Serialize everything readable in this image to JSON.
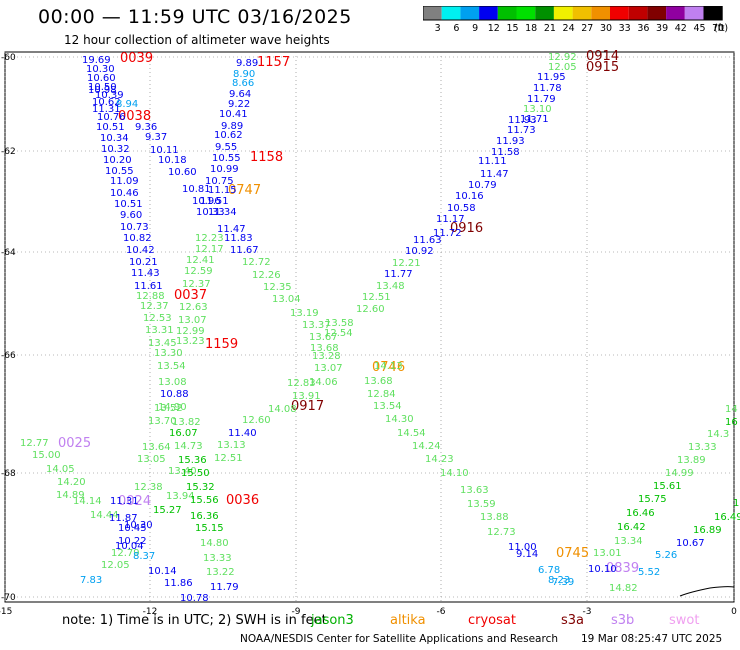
{
  "header": {
    "title": "00:00 — 11:59 UTC 03/16/2025",
    "subtitle": "12 hour collection of altimeter wave heights"
  },
  "colorbar": {
    "unit": "(ft)",
    "ticks": [
      "3",
      "6",
      "9",
      "12",
      "15",
      "18",
      "21",
      "24",
      "27",
      "30",
      "33",
      "36",
      "39",
      "42",
      "45",
      "70"
    ],
    "colors": [
      "#808080",
      "#00f0f0",
      "#00a0f0",
      "#0000f0",
      "#00c000",
      "#00e000",
      "#009000",
      "#f0f000",
      "#f0c000",
      "#f09000",
      "#f00000",
      "#c00000",
      "#800000",
      "#9000a0",
      "#c080f0",
      "#000000"
    ]
  },
  "map": {
    "y_ticks": [
      "-60",
      "-62",
      "-64",
      "-66",
      "-68",
      "-70"
    ],
    "x_ticks": [
      "-15",
      "-12",
      "-9",
      "-6",
      "-3",
      "0"
    ],
    "times": [
      {
        "text": "0039",
        "color": "#f00000"
      },
      {
        "text": "1157",
        "color": "#f00000"
      },
      {
        "text": "0914",
        "color": "#800000"
      },
      {
        "text": "0915",
        "color": "#800000"
      },
      {
        "text": "0038",
        "color": "#f00000"
      },
      {
        "text": "1158",
        "color": "#f00000"
      },
      {
        "text": "0747",
        "color": "#f09000"
      },
      {
        "text": "0916",
        "color": "#800000"
      },
      {
        "text": "0037",
        "color": "#f00000"
      },
      {
        "text": "1159",
        "color": "#f00000"
      },
      {
        "text": "0746",
        "color": "#f09000"
      },
      {
        "text": "0917",
        "color": "#800000"
      },
      {
        "text": "0025",
        "color": "#c080f0"
      },
      {
        "text": "0024",
        "color": "#c080f0"
      },
      {
        "text": "0036",
        "color": "#f00000"
      },
      {
        "text": "0745",
        "color": "#f09000"
      },
      {
        "text": "0839",
        "color": "#c080f0"
      }
    ],
    "values": [
      {
        "text": "19.69",
        "color": "#0000f0"
      },
      {
        "text": "10.30",
        "color": "#0000f0"
      },
      {
        "text": "10.60",
        "color": "#0000f0"
      },
      {
        "text": "10.50",
        "color": "#0000f0"
      },
      {
        "text": "10.39",
        "color": "#0000f0"
      },
      {
        "text": "10.98",
        "color": "#0000f0"
      },
      {
        "text": "10.62",
        "color": "#0000f0"
      },
      {
        "text": "8.94",
        "color": "#00a0f0"
      },
      {
        "text": "11.31",
        "color": "#0000f0"
      },
      {
        "text": "10.76",
        "color": "#0000f0"
      },
      {
        "text": "9.36",
        "color": "#0000f0"
      },
      {
        "text": "10.51",
        "color": "#0000f0"
      },
      {
        "text": "9.37",
        "color": "#0000f0"
      },
      {
        "text": "10.34",
        "color": "#0000f0"
      },
      {
        "text": "10.32",
        "color": "#0000f0"
      },
      {
        "text": "10.11",
        "color": "#0000f0"
      },
      {
        "text": "10.20",
        "color": "#0000f0"
      },
      {
        "text": "10.18",
        "color": "#0000f0"
      },
      {
        "text": "10.55",
        "color": "#0000f0"
      },
      {
        "text": "10.60",
        "color": "#0000f0"
      },
      {
        "text": "11.09",
        "color": "#0000f0"
      },
      {
        "text": "10.46",
        "color": "#0000f0"
      },
      {
        "text": "10.81",
        "color": "#0000f0"
      },
      {
        "text": "10.51",
        "color": "#0000f0"
      },
      {
        "text": "10.96",
        "color": "#0000f0"
      },
      {
        "text": "9.60",
        "color": "#0000f0"
      },
      {
        "text": "10.33",
        "color": "#0000f0"
      },
      {
        "text": "10.73",
        "color": "#0000f0"
      },
      {
        "text": "10.82",
        "color": "#0000f0"
      },
      {
        "text": "10.42",
        "color": "#0000f0"
      },
      {
        "text": "10.21",
        "color": "#0000f0"
      },
      {
        "text": "11.43",
        "color": "#0000f0"
      },
      {
        "text": "11.61",
        "color": "#0000f0"
      },
      {
        "text": "12.88",
        "color": "#60e060"
      },
      {
        "text": "12.37",
        "color": "#60e060"
      },
      {
        "text": "12.53",
        "color": "#60e060"
      },
      {
        "text": "13.31",
        "color": "#60e060"
      },
      {
        "text": "13.45",
        "color": "#60e060"
      },
      {
        "text": "13.30",
        "color": "#60e060"
      },
      {
        "text": "13.54",
        "color": "#60e060"
      },
      {
        "text": "13.08",
        "color": "#60e060"
      },
      {
        "text": "10.88",
        "color": "#0000f0"
      },
      {
        "text": "13.52",
        "color": "#60e060"
      },
      {
        "text": "14.90",
        "color": "#60e060"
      },
      {
        "text": "13.82",
        "color": "#60e060"
      },
      {
        "text": "13.70",
        "color": "#60e060"
      },
      {
        "text": "16.07",
        "color": "#00c000"
      },
      {
        "text": "13.64",
        "color": "#60e060"
      },
      {
        "text": "14.73",
        "color": "#60e060"
      },
      {
        "text": "13.05",
        "color": "#60e060"
      },
      {
        "text": "15.36",
        "color": "#00c000"
      },
      {
        "text": "13.40",
        "color": "#60e060"
      },
      {
        "text": "15.50",
        "color": "#00c000"
      },
      {
        "text": "12.38",
        "color": "#60e060"
      },
      {
        "text": "15.32",
        "color": "#00c000"
      },
      {
        "text": "13.94",
        "color": "#60e060"
      },
      {
        "text": "15.56",
        "color": "#00c000"
      },
      {
        "text": "15.27",
        "color": "#00c000"
      },
      {
        "text": "16.36",
        "color": "#00c000"
      },
      {
        "text": "15.15",
        "color": "#00c000"
      },
      {
        "text": "14.80",
        "color": "#60e060"
      },
      {
        "text": "13.33",
        "color": "#60e060"
      },
      {
        "text": "13.22",
        "color": "#60e060"
      },
      {
        "text": "11.86",
        "color": "#0000f0"
      },
      {
        "text": "10.78",
        "color": "#0000f0"
      },
      {
        "text": "11.79",
        "color": "#0000f0"
      },
      {
        "text": "9.89",
        "color": "#0000f0"
      },
      {
        "text": "8.90",
        "color": "#00a0f0"
      },
      {
        "text": "8.66",
        "color": "#00a0f0"
      },
      {
        "text": "9.64",
        "color": "#0000f0"
      },
      {
        "text": "9.22",
        "color": "#0000f0"
      },
      {
        "text": "10.41",
        "color": "#0000f0"
      },
      {
        "text": "9.89",
        "color": "#0000f0"
      },
      {
        "text": "10.62",
        "color": "#0000f0"
      },
      {
        "text": "9.55",
        "color": "#0000f0"
      },
      {
        "text": "10.55",
        "color": "#0000f0"
      },
      {
        "text": "10.99",
        "color": "#0000f0"
      },
      {
        "text": "10.75",
        "color": "#0000f0"
      },
      {
        "text": "11.15",
        "color": "#0000f0"
      },
      {
        "text": "11.51",
        "color": "#0000f0"
      },
      {
        "text": "11.34",
        "color": "#0000f0"
      },
      {
        "text": "11.47",
        "color": "#0000f0"
      },
      {
        "text": "11.83",
        "color": "#0000f0"
      },
      {
        "text": "12.23",
        "color": "#60e060"
      },
      {
        "text": "12.17",
        "color": "#60e060"
      },
      {
        "text": "11.67",
        "color": "#0000f0"
      },
      {
        "text": "12.41",
        "color": "#60e060"
      },
      {
        "text": "12.72",
        "color": "#60e060"
      },
      {
        "text": "12.59",
        "color": "#60e060"
      },
      {
        "text": "12.26",
        "color": "#60e060"
      },
      {
        "text": "12.37",
        "color": "#60e060"
      },
      {
        "text": "12.35",
        "color": "#60e060"
      },
      {
        "text": "12.63",
        "color": "#60e060"
      },
      {
        "text": "13.04",
        "color": "#60e060"
      },
      {
        "text": "13.07",
        "color": "#60e060"
      },
      {
        "text": "13.19",
        "color": "#60e060"
      },
      {
        "text": "12.99",
        "color": "#60e060"
      },
      {
        "text": "13.37",
        "color": "#60e060"
      },
      {
        "text": "13.23",
        "color": "#60e060"
      },
      {
        "text": "13.67",
        "color": "#60e060"
      },
      {
        "text": "13.68",
        "color": "#60e060"
      },
      {
        "text": "13.28",
        "color": "#60e060"
      },
      {
        "text": "13.07",
        "color": "#60e060"
      },
      {
        "text": "14.06",
        "color": "#60e060"
      },
      {
        "text": "12.83",
        "color": "#60e060"
      },
      {
        "text": "13.91",
        "color": "#60e060"
      },
      {
        "text": "14.08",
        "color": "#60e060"
      },
      {
        "text": "12.60",
        "color": "#60e060"
      },
      {
        "text": "11.40",
        "color": "#0000f0"
      },
      {
        "text": "13.13",
        "color": "#60e060"
      },
      {
        "text": "12.51",
        "color": "#60e060"
      },
      {
        "text": "12.92",
        "color": "#60e060"
      },
      {
        "text": "12.05",
        "color": "#60e060"
      },
      {
        "text": "11.95",
        "color": "#0000f0"
      },
      {
        "text": "11.78",
        "color": "#0000f0"
      },
      {
        "text": "11.79",
        "color": "#0000f0"
      },
      {
        "text": "13.10",
        "color": "#60e060"
      },
      {
        "text": "11.93",
        "color": "#0000f0"
      },
      {
        "text": "11.71",
        "color": "#0000f0"
      },
      {
        "text": "11.73",
        "color": "#0000f0"
      },
      {
        "text": "11.93",
        "color": "#0000f0"
      },
      {
        "text": "11.58",
        "color": "#0000f0"
      },
      {
        "text": "11.11",
        "color": "#0000f0"
      },
      {
        "text": "11.47",
        "color": "#0000f0"
      },
      {
        "text": "10.79",
        "color": "#0000f0"
      },
      {
        "text": "10.16",
        "color": "#0000f0"
      },
      {
        "text": "10.58",
        "color": "#0000f0"
      },
      {
        "text": "11.17",
        "color": "#0000f0"
      },
      {
        "text": "11.72",
        "color": "#0000f0"
      },
      {
        "text": "11.63",
        "color": "#0000f0"
      },
      {
        "text": "10.92",
        "color": "#0000f0"
      },
      {
        "text": "12.21",
        "color": "#60e060"
      },
      {
        "text": "11.77",
        "color": "#0000f0"
      },
      {
        "text": "13.48",
        "color": "#60e060"
      },
      {
        "text": "12.51",
        "color": "#60e060"
      },
      {
        "text": "12.60",
        "color": "#60e060"
      },
      {
        "text": "12.54",
        "color": "#60e060"
      },
      {
        "text": "13.58",
        "color": "#60e060"
      },
      {
        "text": "14.13",
        "color": "#60e060"
      },
      {
        "text": "13.68",
        "color": "#60e060"
      },
      {
        "text": "12.84",
        "color": "#60e060"
      },
      {
        "text": "13.54",
        "color": "#60e060"
      },
      {
        "text": "14.30",
        "color": "#60e060"
      },
      {
        "text": "14.54",
        "color": "#60e060"
      },
      {
        "text": "14.24",
        "color": "#60e060"
      },
      {
        "text": "14.23",
        "color": "#60e060"
      },
      {
        "text": "14.10",
        "color": "#60e060"
      },
      {
        "text": "13.63",
        "color": "#60e060"
      },
      {
        "text": "13.59",
        "color": "#60e060"
      },
      {
        "text": "13.88",
        "color": "#60e060"
      },
      {
        "text": "12.73",
        "color": "#60e060"
      },
      {
        "text": "11.00",
        "color": "#0000f0"
      },
      {
        "text": "9.14",
        "color": "#0000f0"
      },
      {
        "text": "6.78",
        "color": "#00a0f0"
      },
      {
        "text": "7.39",
        "color": "#00a0f0"
      },
      {
        "text": "8.23",
        "color": "#00a0f0"
      },
      {
        "text": "10.10",
        "color": "#0000f0"
      },
      {
        "text": "13.01",
        "color": "#60e060"
      },
      {
        "text": "13.34",
        "color": "#60e060"
      },
      {
        "text": "16.42",
        "color": "#00c000"
      },
      {
        "text": "16.46",
        "color": "#00c000"
      },
      {
        "text": "15.75",
        "color": "#00c000"
      },
      {
        "text": "15.61",
        "color": "#00c000"
      },
      {
        "text": "14.99",
        "color": "#60e060"
      },
      {
        "text": "13.89",
        "color": "#60e060"
      },
      {
        "text": "13.33",
        "color": "#60e060"
      },
      {
        "text": "14.3",
        "color": "#60e060"
      },
      {
        "text": "14",
        "color": "#60e060"
      },
      {
        "text": "16",
        "color": "#00c000"
      },
      {
        "text": "17.39",
        "color": "#00c000"
      },
      {
        "text": "16.49",
        "color": "#00c000"
      },
      {
        "text": "16.89",
        "color": "#00c000"
      },
      {
        "text": "10.67",
        "color": "#0000f0"
      },
      {
        "text": "5.26",
        "color": "#00a0f0"
      },
      {
        "text": "5.52",
        "color": "#00a0f0"
      },
      {
        "text": "14.82",
        "color": "#60e060"
      },
      {
        "text": "12.77",
        "color": "#60e060"
      },
      {
        "text": "15.00",
        "color": "#60e060"
      },
      {
        "text": "14.05",
        "color": "#60e060"
      },
      {
        "text": "14.20",
        "color": "#60e060"
      },
      {
        "text": "14.89",
        "color": "#60e060"
      },
      {
        "text": "14.14",
        "color": "#60e060"
      },
      {
        "text": "14.44",
        "color": "#60e060"
      },
      {
        "text": "11.31",
        "color": "#0000f0"
      },
      {
        "text": "11.87",
        "color": "#0000f0"
      },
      {
        "text": "10.45",
        "color": "#0000f0"
      },
      {
        "text": "10.30",
        "color": "#0000f0"
      },
      {
        "text": "10.22",
        "color": "#0000f0"
      },
      {
        "text": "10.04",
        "color": "#0000f0"
      },
      {
        "text": "12.79",
        "color": "#60e060"
      },
      {
        "text": "8.37",
        "color": "#00a0f0"
      },
      {
        "text": "12.05",
        "color": "#60e060"
      },
      {
        "text": "10.14",
        "color": "#0000f0"
      },
      {
        "text": "7.83",
        "color": "#00a0f0"
      }
    ]
  },
  "footer": {
    "note": "note:  1) Time is in UTC;  2) SWH is in feet",
    "satellites": [
      {
        "name": "jason3",
        "color": "#00b000"
      },
      {
        "name": "altika",
        "color": "#f09000"
      },
      {
        "name": "cryosat",
        "color": "#f00000"
      },
      {
        "name": "s3a",
        "color": "#800000"
      },
      {
        "name": "s3b",
        "color": "#c080f0"
      },
      {
        "name": "swot",
        "color": "#f0a0f0"
      }
    ],
    "credit": "NOAA/NESDIS Center for Satellite Applications and Research",
    "credit_date": "19 Mar 08:25:47 UTC 2025"
  }
}
